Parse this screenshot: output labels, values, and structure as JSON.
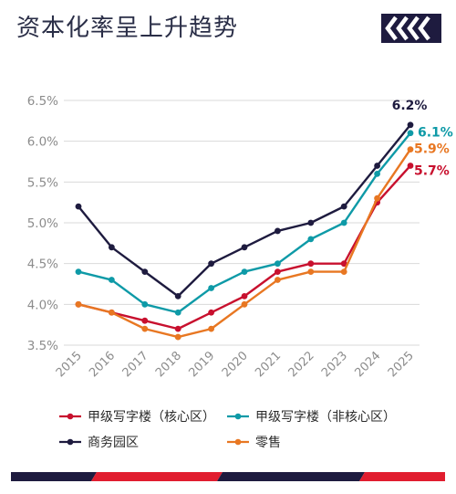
{
  "title": "资本化率呈上升趋势",
  "colors": {
    "background": "#ffffff",
    "title": "#2a2e47",
    "grid": "#d9d9d9",
    "tick": "#8c8c8c",
    "navy": "#1e1b3f",
    "red": "#e11d2f"
  },
  "chart_data": {
    "type": "line",
    "title": "资本化率呈上升趋势",
    "xlabel": "",
    "ylabel": "",
    "x": [
      "2015",
      "2016",
      "2017",
      "2018",
      "2019",
      "2020",
      "2021",
      "2022",
      "2023",
      "2024",
      "2025"
    ],
    "ylim": [
      3.5,
      6.5
    ],
    "yticks": [
      3.5,
      4.0,
      4.5,
      5.0,
      5.5,
      6.0,
      6.5
    ],
    "ytick_labels": [
      "3.5%",
      "4.0%",
      "4.5%",
      "5.0%",
      "5.5%",
      "6.0%",
      "6.5%"
    ],
    "grid": "horizontal",
    "legend_position": "bottom",
    "series": [
      {
        "name": "甲级写字楼（核心区）",
        "color": "#c8102e",
        "values": [
          4.0,
          3.9,
          3.8,
          3.7,
          3.9,
          4.1,
          4.4,
          4.5,
          4.5,
          5.25,
          5.7
        ],
        "end_label": "5.7%"
      },
      {
        "name": "甲级写字楼（非核心区）",
        "color": "#0e9aa7",
        "values": [
          4.4,
          4.3,
          4.0,
          3.9,
          4.2,
          4.4,
          4.5,
          4.8,
          5.0,
          5.6,
          6.1
        ],
        "end_label": "6.1%"
      },
      {
        "name": "商务园区",
        "color": "#1e1b3f",
        "values": [
          5.2,
          4.7,
          4.4,
          4.1,
          4.5,
          4.7,
          4.9,
          5.0,
          5.2,
          5.7,
          6.2
        ],
        "end_label": "6.2%"
      },
      {
        "name": "零售",
        "color": "#e87722",
        "values": [
          4.0,
          3.9,
          3.7,
          3.6,
          3.7,
          4.0,
          4.3,
          4.4,
          4.4,
          5.3,
          5.9
        ],
        "end_label": "5.9%"
      }
    ]
  }
}
